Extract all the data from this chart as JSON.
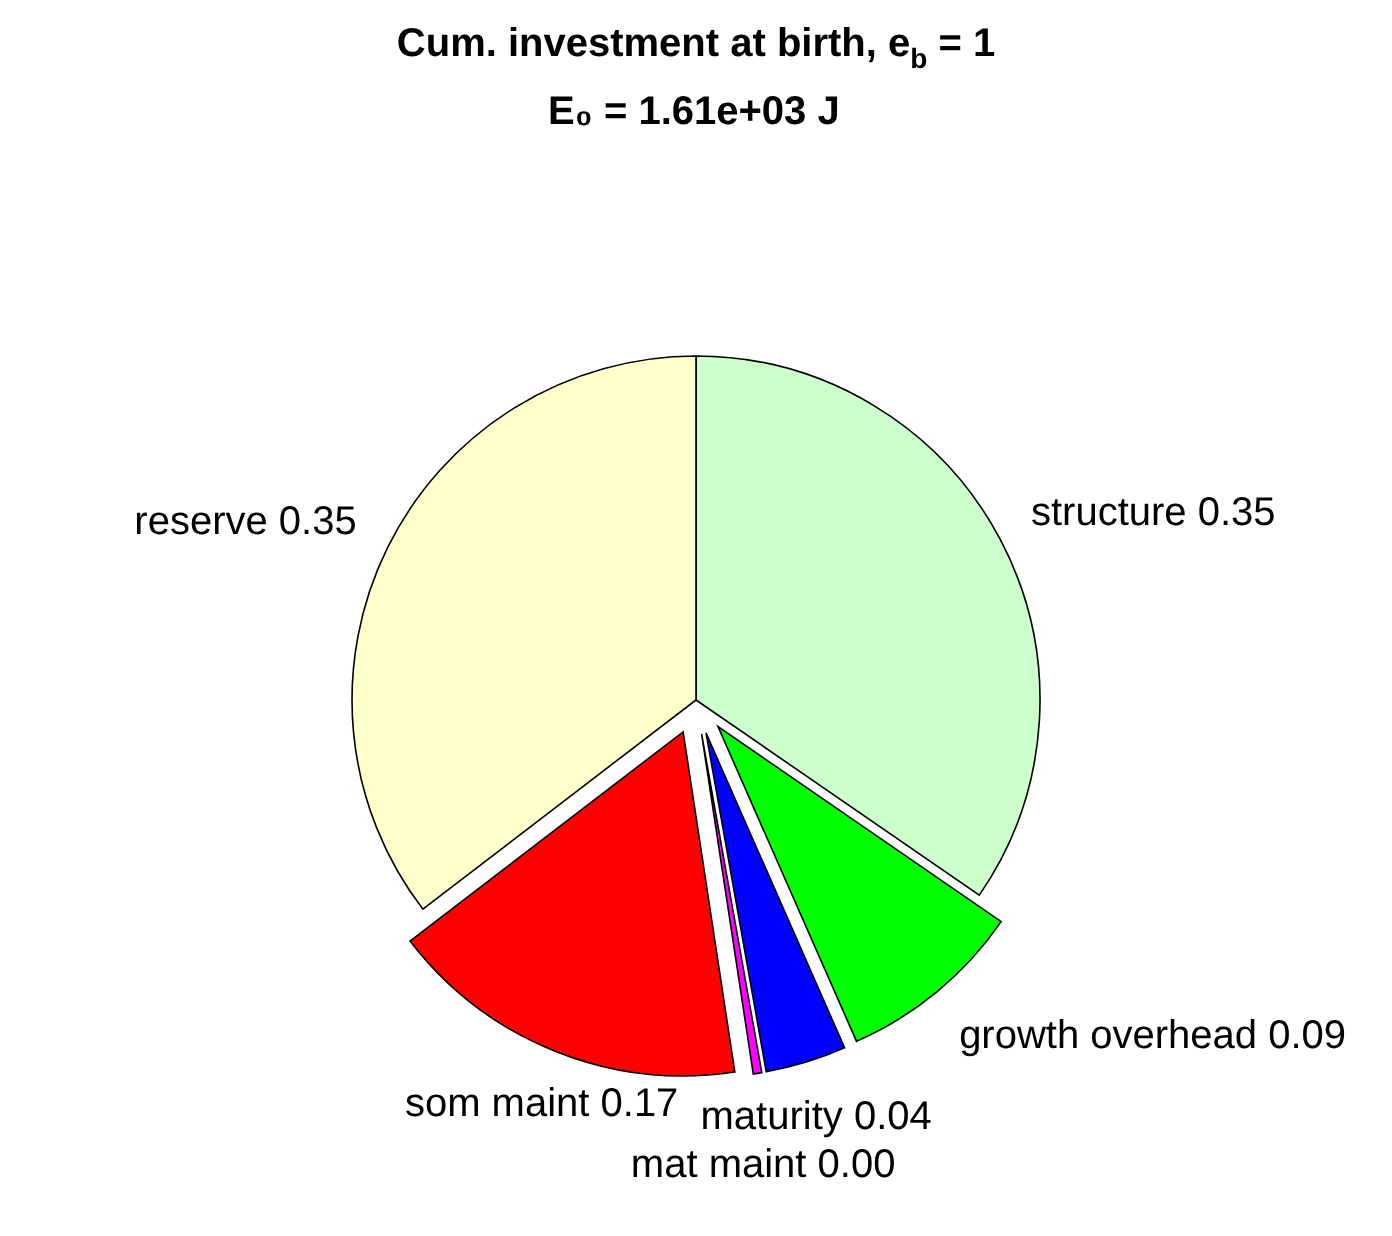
{
  "chart_data": {
    "type": "pie",
    "title": "Cum. investment at birth, e$_{b}$ = 1",
    "subtitle": "E₀ = 1.61e+03 J",
    "categories": [
      "structure",
      "growth overhead",
      "maturity",
      "mat maint",
      "som maint",
      "reserve"
    ],
    "values": [
      0.346,
      0.088,
      0.038,
      0.004,
      0.17,
      0.354
    ],
    "colors": [
      "#ccffcc",
      "#00ff00",
      "#0000ff",
      "#ff00ff",
      "#ff0000",
      "#ffffcc"
    ],
    "value_labels": [
      "0.35",
      "0.09",
      "0.04",
      "0.00",
      "0.17",
      "0.35"
    ]
  }
}
